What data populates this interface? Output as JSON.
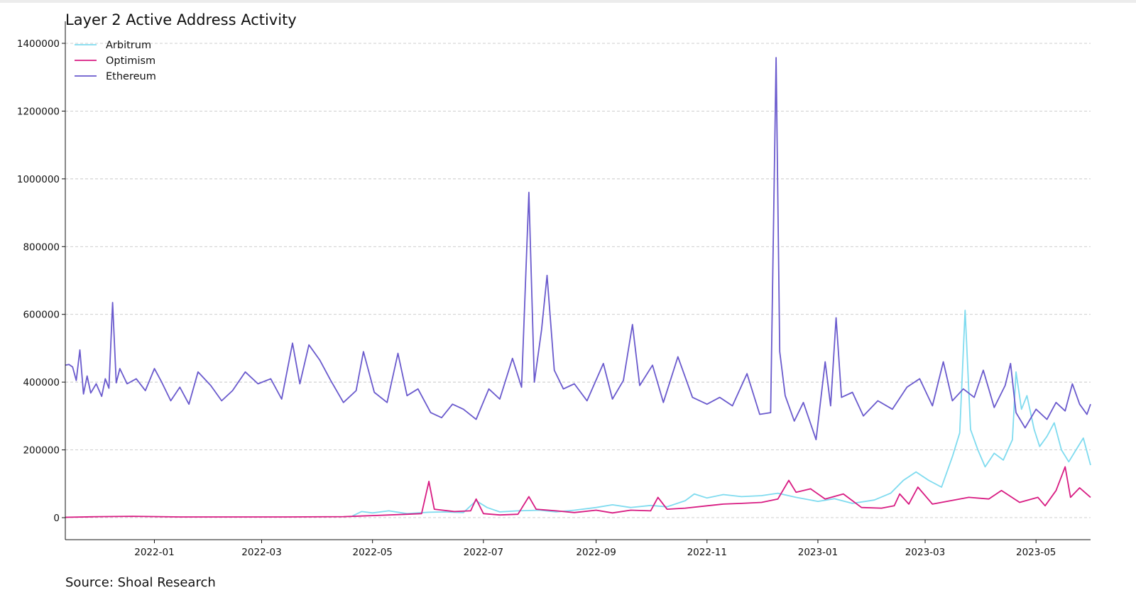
{
  "page": {
    "title": "Layer 2 Active Address Activity",
    "source": "Source: Shoal Research"
  },
  "chart_data": {
    "type": "line",
    "title": "Layer 2 Active Address Activity",
    "xlabel": "",
    "ylabel": "",
    "x_range": [
      "2021-11-13",
      "2023-05-31"
    ],
    "ylim": [
      -65000,
      1465000
    ],
    "y_ticks": [
      0,
      200000,
      400000,
      600000,
      800000,
      1000000,
      1200000,
      1400000
    ],
    "y_tick_labels": [
      "0",
      "200000",
      "400000",
      "600000",
      "800000",
      "1000000",
      "1200000",
      "1400000"
    ],
    "x_ticks": [
      "2022-01-01",
      "2022-03-01",
      "2022-05-01",
      "2022-07-01",
      "2022-09-01",
      "2022-11-01",
      "2023-01-01",
      "2023-03-01",
      "2023-05-01"
    ],
    "x_tick_labels": [
      "2022-01",
      "2022-03",
      "2022-05",
      "2022-07",
      "2022-09",
      "2022-11",
      "2023-01",
      "2023-03",
      "2023-05"
    ],
    "grid": "horizontal dashed",
    "legend_position": "top-left",
    "series": [
      {
        "name": "Arbitrum",
        "color": "#7fdbef",
        "points": [
          [
            "2022-04-20",
            5000
          ],
          [
            "2022-04-25",
            18000
          ],
          [
            "2022-05-01",
            14000
          ],
          [
            "2022-05-10",
            20000
          ],
          [
            "2022-05-20",
            12000
          ],
          [
            "2022-06-01",
            16000
          ],
          [
            "2022-06-10",
            17000
          ],
          [
            "2022-06-20",
            15000
          ],
          [
            "2022-06-27",
            50000
          ],
          [
            "2022-07-03",
            30000
          ],
          [
            "2022-07-10",
            17000
          ],
          [
            "2022-07-20",
            20000
          ],
          [
            "2022-08-01",
            22000
          ],
          [
            "2022-08-10",
            17000
          ],
          [
            "2022-08-20",
            22000
          ],
          [
            "2022-09-01",
            30000
          ],
          [
            "2022-09-10",
            38000
          ],
          [
            "2022-09-20",
            30000
          ],
          [
            "2022-10-01",
            36000
          ],
          [
            "2022-10-10",
            32000
          ],
          [
            "2022-10-20",
            50000
          ],
          [
            "2022-10-25",
            70000
          ],
          [
            "2022-11-01",
            58000
          ],
          [
            "2022-11-10",
            68000
          ],
          [
            "2022-11-20",
            62000
          ],
          [
            "2022-12-01",
            65000
          ],
          [
            "2022-12-10",
            72000
          ],
          [
            "2022-12-20",
            60000
          ],
          [
            "2023-01-01",
            48000
          ],
          [
            "2023-01-10",
            56000
          ],
          [
            "2023-01-20",
            42000
          ],
          [
            "2023-02-01",
            52000
          ],
          [
            "2023-02-10",
            72000
          ],
          [
            "2023-02-17",
            110000
          ],
          [
            "2023-02-24",
            135000
          ],
          [
            "2023-03-03",
            110000
          ],
          [
            "2023-03-10",
            90000
          ],
          [
            "2023-03-16",
            180000
          ],
          [
            "2023-03-20",
            250000
          ],
          [
            "2023-03-23",
            612000
          ],
          [
            "2023-03-26",
            260000
          ],
          [
            "2023-03-30",
            200000
          ],
          [
            "2023-04-03",
            150000
          ],
          [
            "2023-04-08",
            190000
          ],
          [
            "2023-04-13",
            170000
          ],
          [
            "2023-04-18",
            230000
          ],
          [
            "2023-04-20",
            430000
          ],
          [
            "2023-04-23",
            320000
          ],
          [
            "2023-04-26",
            360000
          ],
          [
            "2023-04-30",
            260000
          ],
          [
            "2023-05-03",
            210000
          ],
          [
            "2023-05-07",
            240000
          ],
          [
            "2023-05-11",
            280000
          ],
          [
            "2023-05-15",
            200000
          ],
          [
            "2023-05-19",
            165000
          ],
          [
            "2023-05-23",
            200000
          ],
          [
            "2023-05-27",
            235000
          ],
          [
            "2023-05-31",
            155000
          ]
        ]
      },
      {
        "name": "Optimism",
        "color": "#d81b82",
        "points": [
          [
            "2021-11-13",
            1000
          ],
          [
            "2021-12-01",
            3000
          ],
          [
            "2021-12-20",
            4000
          ],
          [
            "2022-01-15",
            2000
          ],
          [
            "2022-02-15",
            2000
          ],
          [
            "2022-03-15",
            2000
          ],
          [
            "2022-04-15",
            3000
          ],
          [
            "2022-05-01",
            6000
          ],
          [
            "2022-05-20",
            10000
          ],
          [
            "2022-05-28",
            12000
          ],
          [
            "2022-06-01",
            107000
          ],
          [
            "2022-06-04",
            25000
          ],
          [
            "2022-06-15",
            18000
          ],
          [
            "2022-06-24",
            20000
          ],
          [
            "2022-06-27",
            55000
          ],
          [
            "2022-07-01",
            12000
          ],
          [
            "2022-07-10",
            8000
          ],
          [
            "2022-07-20",
            10000
          ],
          [
            "2022-07-26",
            62000
          ],
          [
            "2022-07-30",
            25000
          ],
          [
            "2022-08-10",
            20000
          ],
          [
            "2022-08-20",
            15000
          ],
          [
            "2022-09-01",
            22000
          ],
          [
            "2022-09-10",
            14000
          ],
          [
            "2022-09-20",
            22000
          ],
          [
            "2022-10-01",
            20000
          ],
          [
            "2022-10-05",
            60000
          ],
          [
            "2022-10-10",
            25000
          ],
          [
            "2022-10-20",
            28000
          ],
          [
            "2022-11-01",
            35000
          ],
          [
            "2022-11-10",
            40000
          ],
          [
            "2022-11-20",
            42000
          ],
          [
            "2022-12-01",
            45000
          ],
          [
            "2022-12-10",
            55000
          ],
          [
            "2022-12-16",
            110000
          ],
          [
            "2022-12-20",
            75000
          ],
          [
            "2022-12-28",
            85000
          ],
          [
            "2023-01-05",
            55000
          ],
          [
            "2023-01-15",
            70000
          ],
          [
            "2023-01-25",
            30000
          ],
          [
            "2023-02-05",
            28000
          ],
          [
            "2023-02-12",
            35000
          ],
          [
            "2023-02-15",
            70000
          ],
          [
            "2023-02-20",
            40000
          ],
          [
            "2023-02-25",
            90000
          ],
          [
            "2023-03-05",
            40000
          ],
          [
            "2023-03-15",
            50000
          ],
          [
            "2023-03-25",
            60000
          ],
          [
            "2023-04-05",
            55000
          ],
          [
            "2023-04-12",
            80000
          ],
          [
            "2023-04-22",
            45000
          ],
          [
            "2023-05-02",
            60000
          ],
          [
            "2023-05-06",
            35000
          ],
          [
            "2023-05-12",
            80000
          ],
          [
            "2023-05-17",
            150000
          ],
          [
            "2023-05-20",
            60000
          ],
          [
            "2023-05-25",
            88000
          ],
          [
            "2023-05-31",
            60000
          ]
        ]
      },
      {
        "name": "Ethereum",
        "color": "#6a5acd",
        "points": [
          [
            "2021-11-13",
            450000
          ],
          [
            "2021-11-15",
            452000
          ],
          [
            "2021-11-17",
            445000
          ],
          [
            "2021-11-19",
            405000
          ],
          [
            "2021-11-21",
            495000
          ],
          [
            "2021-11-23",
            365000
          ],
          [
            "2021-11-25",
            418000
          ],
          [
            "2021-11-27",
            368000
          ],
          [
            "2021-11-30",
            395000
          ],
          [
            "2021-12-03",
            358000
          ],
          [
            "2021-12-05",
            410000
          ],
          [
            "2021-12-07",
            382000
          ],
          [
            "2021-12-09",
            635000
          ],
          [
            "2021-12-11",
            398000
          ],
          [
            "2021-12-13",
            440000
          ],
          [
            "2021-12-17",
            395000
          ],
          [
            "2021-12-22",
            410000
          ],
          [
            "2021-12-27",
            375000
          ],
          [
            "2022-01-01",
            440000
          ],
          [
            "2022-01-05",
            400000
          ],
          [
            "2022-01-10",
            345000
          ],
          [
            "2022-01-15",
            385000
          ],
          [
            "2022-01-20",
            335000
          ],
          [
            "2022-01-25",
            430000
          ],
          [
            "2022-02-01",
            390000
          ],
          [
            "2022-02-07",
            345000
          ],
          [
            "2022-02-13",
            375000
          ],
          [
            "2022-02-20",
            430000
          ],
          [
            "2022-02-27",
            395000
          ],
          [
            "2022-03-06",
            410000
          ],
          [
            "2022-03-12",
            350000
          ],
          [
            "2022-03-18",
            515000
          ],
          [
            "2022-03-22",
            395000
          ],
          [
            "2022-03-27",
            510000
          ],
          [
            "2022-04-02",
            465000
          ],
          [
            "2022-04-08",
            405000
          ],
          [
            "2022-04-15",
            340000
          ],
          [
            "2022-04-22",
            375000
          ],
          [
            "2022-04-26",
            490000
          ],
          [
            "2022-05-02",
            370000
          ],
          [
            "2022-05-09",
            340000
          ],
          [
            "2022-05-15",
            485000
          ],
          [
            "2022-05-20",
            360000
          ],
          [
            "2022-05-26",
            380000
          ],
          [
            "2022-06-02",
            310000
          ],
          [
            "2022-06-08",
            295000
          ],
          [
            "2022-06-14",
            335000
          ],
          [
            "2022-06-20",
            320000
          ],
          [
            "2022-06-27",
            290000
          ],
          [
            "2022-07-04",
            380000
          ],
          [
            "2022-07-10",
            350000
          ],
          [
            "2022-07-17",
            470000
          ],
          [
            "2022-07-22",
            385000
          ],
          [
            "2022-07-26",
            960000
          ],
          [
            "2022-07-29",
            400000
          ],
          [
            "2022-08-02",
            555000
          ],
          [
            "2022-08-05",
            715000
          ],
          [
            "2022-08-09",
            435000
          ],
          [
            "2022-08-14",
            380000
          ],
          [
            "2022-08-20",
            395000
          ],
          [
            "2022-08-27",
            345000
          ],
          [
            "2022-09-05",
            455000
          ],
          [
            "2022-09-10",
            350000
          ],
          [
            "2022-09-16",
            405000
          ],
          [
            "2022-09-21",
            570000
          ],
          [
            "2022-09-25",
            390000
          ],
          [
            "2022-10-02",
            450000
          ],
          [
            "2022-10-08",
            340000
          ],
          [
            "2022-10-16",
            475000
          ],
          [
            "2022-10-24",
            355000
          ],
          [
            "2022-11-01",
            335000
          ],
          [
            "2022-11-08",
            355000
          ],
          [
            "2022-11-15",
            330000
          ],
          [
            "2022-11-23",
            425000
          ],
          [
            "2022-11-30",
            305000
          ],
          [
            "2022-12-06",
            310000
          ],
          [
            "2022-12-09",
            1358000
          ],
          [
            "2022-12-11",
            490000
          ],
          [
            "2022-12-14",
            360000
          ],
          [
            "2022-12-19",
            285000
          ],
          [
            "2022-12-24",
            340000
          ],
          [
            "2022-12-31",
            230000
          ],
          [
            "2023-01-05",
            460000
          ],
          [
            "2023-01-08",
            330000
          ],
          [
            "2023-01-11",
            590000
          ],
          [
            "2023-01-14",
            355000
          ],
          [
            "2023-01-20",
            370000
          ],
          [
            "2023-01-26",
            300000
          ],
          [
            "2023-02-03",
            345000
          ],
          [
            "2023-02-11",
            320000
          ],
          [
            "2023-02-19",
            385000
          ],
          [
            "2023-02-26",
            410000
          ],
          [
            "2023-03-05",
            330000
          ],
          [
            "2023-03-11",
            460000
          ],
          [
            "2023-03-16",
            345000
          ],
          [
            "2023-03-22",
            380000
          ],
          [
            "2023-03-28",
            355000
          ],
          [
            "2023-04-02",
            435000
          ],
          [
            "2023-04-08",
            325000
          ],
          [
            "2023-04-14",
            390000
          ],
          [
            "2023-04-17",
            455000
          ],
          [
            "2023-04-20",
            310000
          ],
          [
            "2023-04-25",
            265000
          ],
          [
            "2023-05-01",
            320000
          ],
          [
            "2023-05-07",
            290000
          ],
          [
            "2023-05-12",
            340000
          ],
          [
            "2023-05-17",
            315000
          ],
          [
            "2023-05-21",
            395000
          ],
          [
            "2023-05-25",
            335000
          ],
          [
            "2023-05-29",
            305000
          ],
          [
            "2023-05-31",
            335000
          ]
        ]
      }
    ]
  }
}
